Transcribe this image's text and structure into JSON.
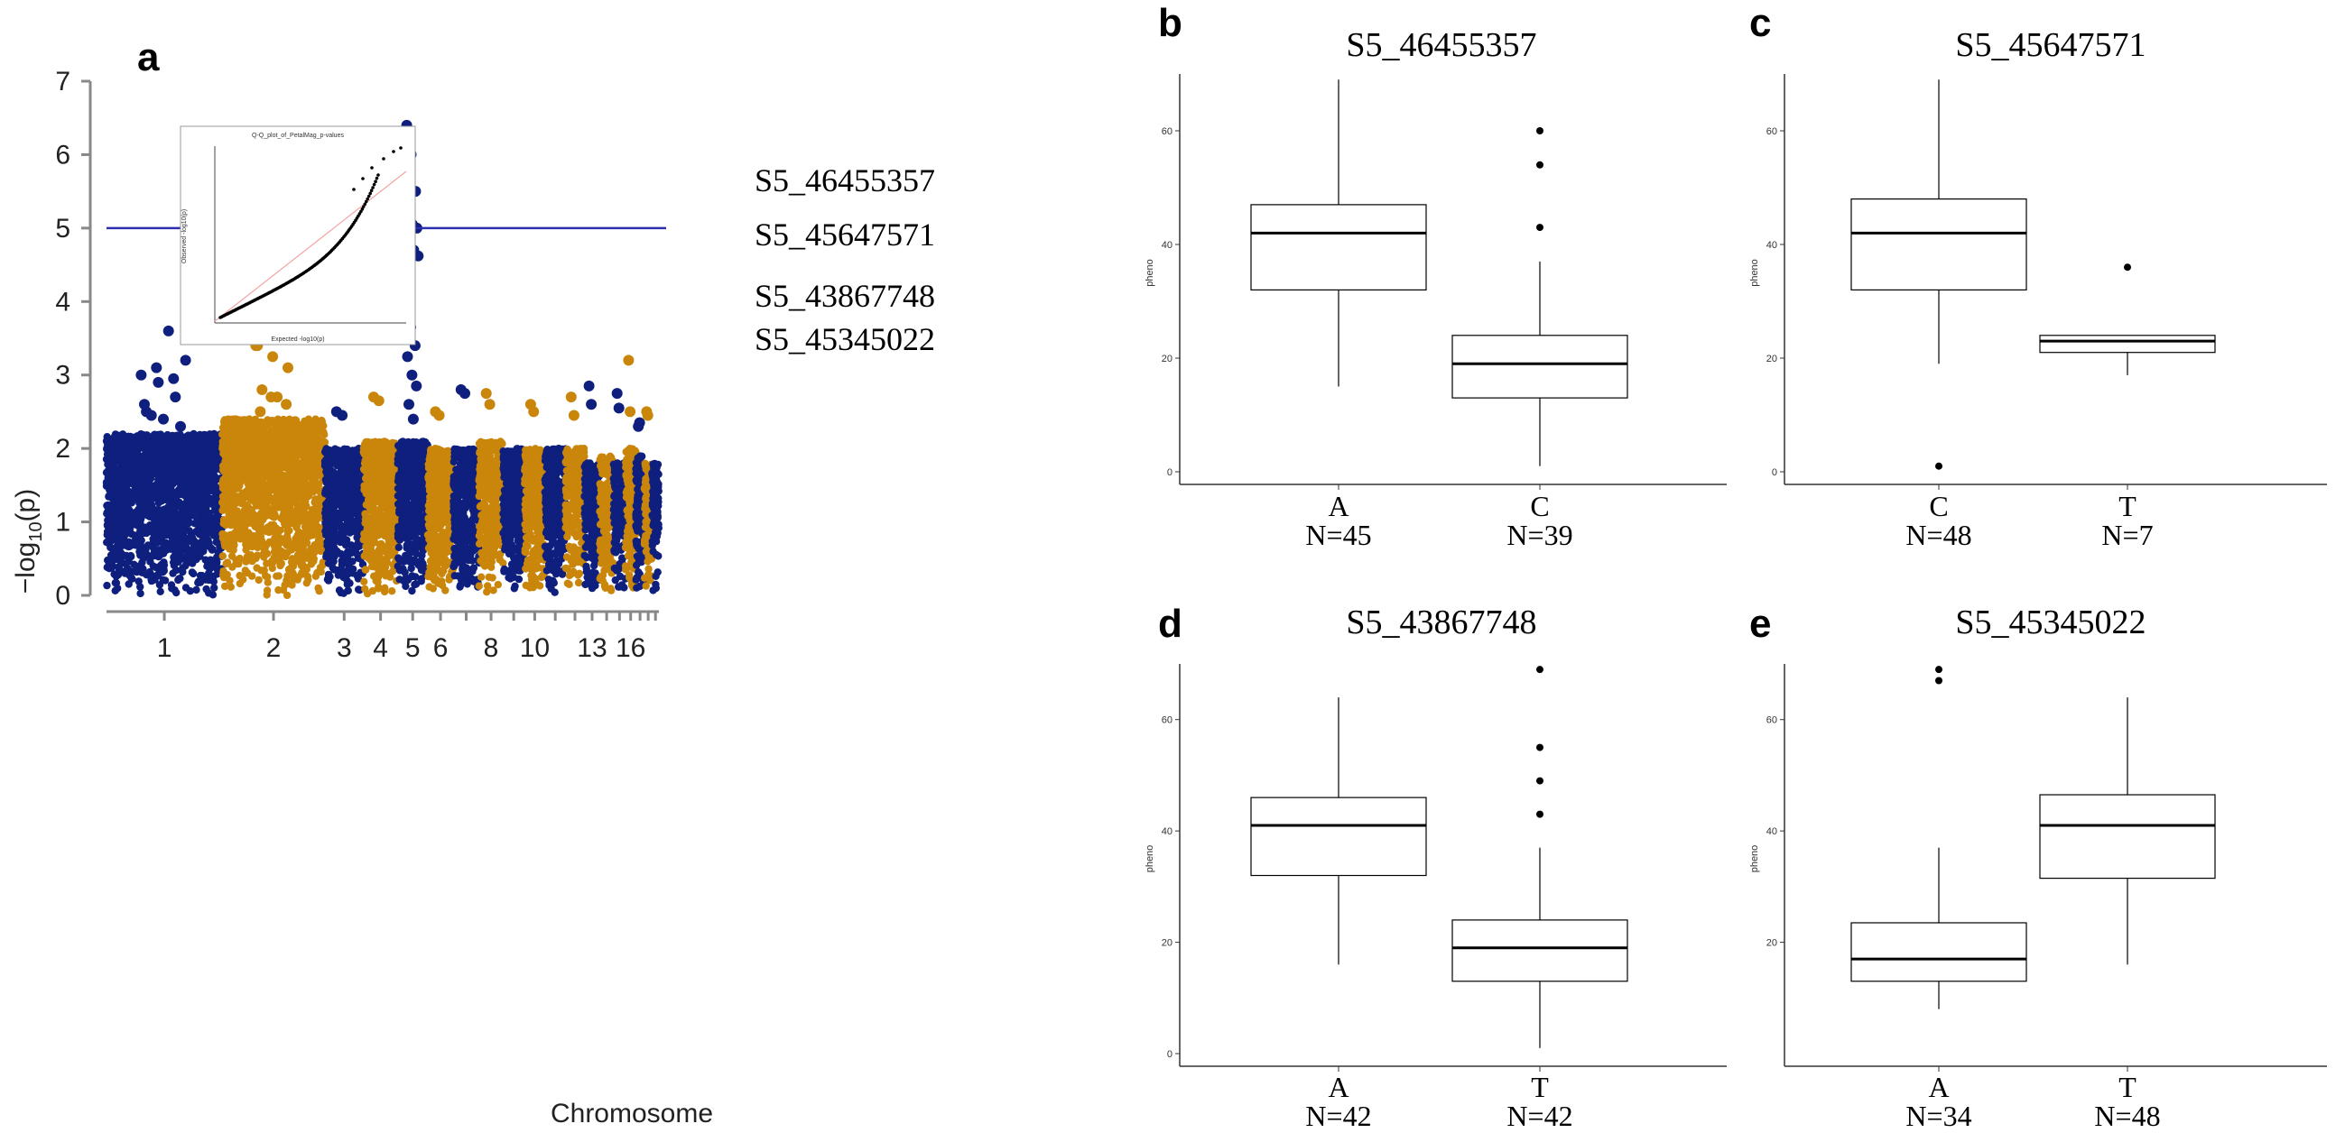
{
  "chart_data": [
    {
      "panel": "a",
      "type": "scatter",
      "subtype": "manhattan",
      "xlabel": "Chromosome",
      "ylabel": "-log10(p)",
      "ylim": [
        0,
        7
      ],
      "yticks": [
        0,
        1,
        2,
        3,
        4,
        5,
        6,
        7
      ],
      "threshold": 5,
      "threshold_color": "#2d2db0",
      "colors": [
        "#0f1f7e",
        "#c9860a"
      ],
      "chromosomes": [
        {
          "chr": 1,
          "label": "1",
          "color": "#0f1f7e",
          "base_max": 2.2
        },
        {
          "chr": 2,
          "label": "2",
          "color": "#c9860a",
          "base_max": 2.4
        },
        {
          "chr": 3,
          "label": "3",
          "color": "#0f1f7e",
          "base_max": 2.0
        },
        {
          "chr": 4,
          "label": "4",
          "color": "#c9860a",
          "base_max": 2.1
        },
        {
          "chr": 5,
          "label": "5",
          "color": "#0f1f7e",
          "base_max": 2.1
        },
        {
          "chr": 6,
          "label": "6",
          "color": "#c9860a",
          "base_max": 2.0
        },
        {
          "chr": 7,
          "label": "",
          "color": "#0f1f7e",
          "base_max": 2.0
        },
        {
          "chr": 8,
          "label": "8",
          "color": "#c9860a",
          "base_max": 2.1
        },
        {
          "chr": 9,
          "label": "",
          "color": "#0f1f7e",
          "base_max": 2.0
        },
        {
          "chr": 10,
          "label": "10",
          "color": "#c9860a",
          "base_max": 2.0
        },
        {
          "chr": 11,
          "label": "",
          "color": "#0f1f7e",
          "base_max": 2.0
        },
        {
          "chr": 12,
          "label": "",
          "color": "#c9860a",
          "base_max": 2.0
        },
        {
          "chr": 13,
          "label": "13",
          "color": "#0f1f7e",
          "base_max": 1.8
        },
        {
          "chr": 14,
          "label": "",
          "color": "#c9860a",
          "base_max": 1.9
        },
        {
          "chr": 15,
          "label": "",
          "color": "#0f1f7e",
          "base_max": 1.8
        },
        {
          "chr": 16,
          "label": "16",
          "color": "#c9860a",
          "base_max": 2.0
        },
        {
          "chr": 17,
          "label": "",
          "color": "#0f1f7e",
          "base_max": 1.9
        },
        {
          "chr": 18,
          "label": "",
          "color": "#c9860a",
          "base_max": 1.8
        },
        {
          "chr": 19,
          "label": "",
          "color": "#0f1f7e",
          "base_max": 1.8
        }
      ],
      "peaks": [
        {
          "chr": 1,
          "values": [
            3.0,
            2.9,
            2.7,
            2.5,
            2.4,
            2.3,
            2.45,
            3.6,
            3.2,
            3.1,
            2.95,
            2.6
          ]
        },
        {
          "chr": 2,
          "values": [
            5.0,
            4.5,
            3.6,
            3.4,
            3.25,
            3.1,
            2.8,
            2.7,
            4.57,
            3.8,
            3.5,
            3.4,
            2.7,
            2.6,
            2.5
          ]
        },
        {
          "chr": 3,
          "values": [
            2.5,
            2.45
          ]
        },
        {
          "chr": 4,
          "values": [
            2.7,
            2.65
          ]
        },
        {
          "chr": 5,
          "values": [
            6.4,
            6.0,
            5.5,
            5.35,
            5.05,
            5.0,
            4.95,
            4.7,
            4.62,
            3.65,
            3.4,
            3.25,
            3.0,
            2.85,
            2.6,
            2.4
          ]
        },
        {
          "chr": 6,
          "values": [
            2.5,
            2.45
          ]
        },
        {
          "chr": 7,
          "values": [
            2.8,
            2.75
          ]
        },
        {
          "chr": 8,
          "values": [
            2.75,
            2.6
          ]
        },
        {
          "chr": 10,
          "values": [
            2.6,
            2.5
          ]
        },
        {
          "chr": 12,
          "values": [
            2.7,
            2.45
          ]
        },
        {
          "chr": 13,
          "values": [
            2.85,
            2.6
          ]
        },
        {
          "chr": 15,
          "values": [
            2.75,
            2.55
          ]
        },
        {
          "chr": 16,
          "values": [
            3.2,
            2.5
          ]
        },
        {
          "chr": 17,
          "values": [
            2.3,
            2.35
          ]
        },
        {
          "chr": 18,
          "values": [
            2.5,
            2.45
          ]
        }
      ],
      "annotations": [
        "S5_46455357",
        "S5_45647571",
        "S5_43867748",
        "S5_45345022"
      ],
      "inset": {
        "title": "Q-Q_plot_of_PetalMag_p-values",
        "xlabel": "Expected -log10(p)",
        "ylabel": "Observed -log10(p)"
      }
    },
    {
      "panel": "b",
      "type": "box",
      "title": "S5_46455357",
      "ylabel": "pheno",
      "ylim": [
        0,
        70
      ],
      "yticks": [
        0,
        20,
        40,
        60
      ],
      "groups": [
        {
          "name": "A",
          "n": "N=45",
          "min": 15,
          "q1": 32,
          "median": 42,
          "q3": 47,
          "max": 69,
          "outliers": []
        },
        {
          "name": "C",
          "n": "N=39",
          "min": 1,
          "q1": 13,
          "median": 19,
          "q3": 24,
          "max": 37,
          "outliers": [
            43,
            54,
            60
          ]
        }
      ]
    },
    {
      "panel": "c",
      "type": "box",
      "title": "S5_45647571",
      "ylabel": "pheno",
      "ylim": [
        0,
        70
      ],
      "yticks": [
        0,
        20,
        40,
        60
      ],
      "groups": [
        {
          "name": "C",
          "n": "N=48",
          "min": 19,
          "q1": 32,
          "median": 42,
          "q3": 48,
          "max": 69,
          "outliers": [
            1
          ]
        },
        {
          "name": "T",
          "n": "N=7",
          "min": 17,
          "q1": 21,
          "median": 23,
          "q3": 24,
          "max": 24,
          "outliers": [
            36
          ]
        }
      ]
    },
    {
      "panel": "d",
      "type": "box",
      "title": "S5_43867748",
      "ylabel": "pheno",
      "ylim": [
        0,
        70
      ],
      "yticks": [
        0,
        20,
        40,
        60
      ],
      "groups": [
        {
          "name": "A",
          "n": "N=42",
          "min": 16,
          "q1": 32,
          "median": 41,
          "q3": 46,
          "max": 64,
          "outliers": []
        },
        {
          "name": "T",
          "n": "N=42",
          "min": 1,
          "q1": 13,
          "median": 19,
          "q3": 24,
          "max": 37,
          "outliers": [
            43,
            49,
            55,
            69
          ]
        }
      ]
    },
    {
      "panel": "e",
      "type": "box",
      "title": "S5_45345022",
      "ylabel": "pheno",
      "ylim": [
        0,
        70
      ],
      "yticks": [
        20,
        40,
        60
      ],
      "groups": [
        {
          "name": "A",
          "n": "N=34",
          "min": 8,
          "q1": 13,
          "median": 17,
          "q3": 23.5,
          "max": 37,
          "outliers": [
            67,
            69
          ]
        },
        {
          "name": "T",
          "n": "N=48",
          "min": 16,
          "q1": 31.5,
          "median": 41,
          "q3": 46.5,
          "max": 64,
          "outliers": []
        }
      ]
    }
  ]
}
